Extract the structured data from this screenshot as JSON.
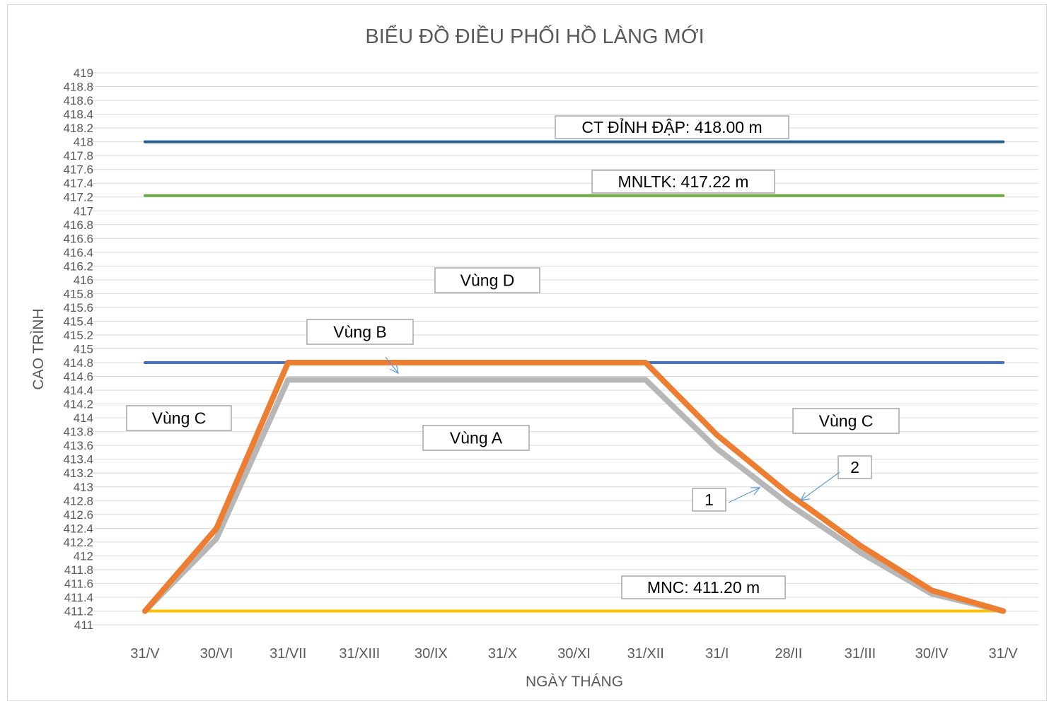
{
  "chart_data": {
    "type": "line",
    "title": "BIỂU ĐỒ ĐIỀU PHỐI HỒ LÀNG MỚI",
    "xlabel": "NGÀY THÁNG",
    "ylabel": "CAO TRÌNH",
    "ylim": [
      411,
      419
    ],
    "ystep": 0.2,
    "categories": [
      "31/V",
      "30/VI",
      "31/VII",
      "31/XIII",
      "30/IX",
      "31/X",
      "30/XI",
      "31/XII",
      "31/I",
      "28/II",
      "31/III",
      "30/IV",
      "31/V"
    ],
    "grid": true,
    "series": [
      {
        "name": "1",
        "color": "#b7b7b7",
        "values": [
          411.2,
          412.25,
          414.55,
          414.55,
          414.55,
          414.55,
          414.55,
          414.55,
          413.55,
          412.75,
          412.05,
          411.45,
          411.2
        ]
      },
      {
        "name": "2",
        "color": "#ed7d31",
        "values": [
          411.2,
          412.4,
          414.8,
          414.8,
          414.8,
          414.8,
          414.8,
          414.8,
          413.75,
          412.9,
          412.15,
          411.5,
          411.2
        ]
      }
    ],
    "reference_lines": [
      {
        "value": 418.0,
        "color": "#255e91"
      },
      {
        "value": 417.22,
        "color": "#70ad47"
      },
      {
        "value": 414.8,
        "color": "#4472c4"
      },
      {
        "value": 411.2,
        "color": "#ffc000"
      }
    ],
    "annotations": [
      {
        "text": "CT ĐỈNH ĐẬP: 418.00 m"
      },
      {
        "text": "MNLTK: 417.22 m"
      },
      {
        "text": "Vùng D"
      },
      {
        "text": "Vùng B"
      },
      {
        "text": "Vùng C"
      },
      {
        "text": "Vùng A"
      },
      {
        "text": "Vùng C"
      },
      {
        "text": "2"
      },
      {
        "text": "1"
      },
      {
        "text": "MNC: 411.20 m"
      }
    ]
  }
}
